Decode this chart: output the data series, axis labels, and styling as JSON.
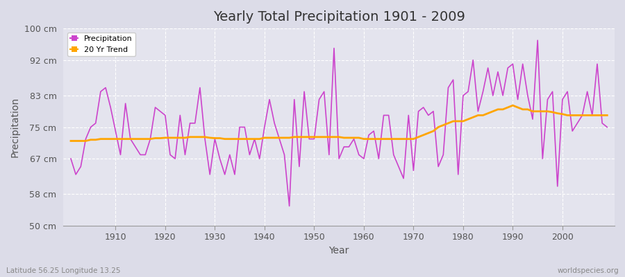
{
  "title": "Yearly Total Precipitation 1901 - 2009",
  "xlabel": "Year",
  "ylabel": "Precipitation",
  "bottom_left_label": "Latitude 56.25 Longitude 13.25",
  "bottom_right_label": "worldspecies.org",
  "precipitation_color": "#CC44CC",
  "trend_color": "#FFA500",
  "fig_bg_color": "#DCDCE8",
  "plot_bg_color": "#E4E4EE",
  "ylim": [
    50,
    100
  ],
  "yticks": [
    50,
    58,
    67,
    75,
    83,
    92,
    100
  ],
  "ytick_labels": [
    "50 cm",
    "58 cm",
    "67 cm",
    "75 cm",
    "83 cm",
    "92 cm",
    "100 cm"
  ],
  "years": [
    1901,
    1902,
    1903,
    1904,
    1905,
    1906,
    1907,
    1908,
    1909,
    1910,
    1911,
    1912,
    1913,
    1914,
    1915,
    1916,
    1917,
    1918,
    1919,
    1920,
    1921,
    1922,
    1923,
    1924,
    1925,
    1926,
    1927,
    1928,
    1929,
    1930,
    1931,
    1932,
    1933,
    1934,
    1935,
    1936,
    1937,
    1938,
    1939,
    1940,
    1941,
    1942,
    1943,
    1944,
    1945,
    1946,
    1947,
    1948,
    1949,
    1950,
    1951,
    1952,
    1953,
    1954,
    1955,
    1956,
    1957,
    1958,
    1959,
    1960,
    1961,
    1962,
    1963,
    1964,
    1965,
    1966,
    1967,
    1968,
    1969,
    1970,
    1971,
    1972,
    1973,
    1974,
    1975,
    1976,
    1977,
    1978,
    1979,
    1980,
    1981,
    1982,
    1983,
    1984,
    1985,
    1986,
    1987,
    1988,
    1989,
    1990,
    1991,
    1992,
    1993,
    1994,
    1995,
    1996,
    1997,
    1998,
    1999,
    2000,
    2001,
    2002,
    2003,
    2004,
    2005,
    2006,
    2007,
    2008,
    2009
  ],
  "precipitation": [
    67,
    63,
    65,
    72,
    75,
    76,
    84,
    85,
    80,
    74,
    68,
    81,
    72,
    70,
    68,
    68,
    72,
    80,
    79,
    78,
    68,
    67,
    78,
    68,
    76,
    76,
    85,
    72,
    63,
    72,
    67,
    63,
    68,
    63,
    75,
    75,
    68,
    72,
    67,
    75,
    82,
    76,
    72,
    68,
    55,
    82,
    65,
    84,
    72,
    72,
    82,
    84,
    68,
    95,
    67,
    70,
    70,
    72,
    68,
    67,
    73,
    74,
    67,
    78,
    78,
    68,
    65,
    62,
    78,
    64,
    79,
    80,
    78,
    79,
    65,
    68,
    85,
    87,
    63,
    83,
    84,
    92,
    79,
    84,
    90,
    83,
    89,
    83,
    90,
    91,
    82,
    91,
    83,
    77,
    97,
    67,
    82,
    84,
    60,
    82,
    84,
    74,
    76,
    78,
    84,
    78,
    91,
    76,
    75
  ],
  "trend": [
    71.5,
    71.5,
    71.5,
    71.5,
    71.8,
    71.8,
    72.0,
    72.0,
    72.0,
    72.0,
    72.0,
    72.0,
    72.0,
    72.0,
    72.0,
    72.0,
    72.0,
    72.2,
    72.2,
    72.3,
    72.3,
    72.3,
    72.3,
    72.3,
    72.5,
    72.5,
    72.5,
    72.5,
    72.3,
    72.2,
    72.2,
    72.0,
    72.0,
    72.0,
    72.0,
    72.0,
    72.0,
    72.0,
    72.0,
    72.3,
    72.3,
    72.3,
    72.3,
    72.3,
    72.3,
    72.5,
    72.5,
    72.5,
    72.5,
    72.5,
    72.5,
    72.5,
    72.5,
    72.5,
    72.5,
    72.3,
    72.3,
    72.3,
    72.3,
    72.0,
    72.0,
    72.0,
    72.0,
    72.0,
    72.0,
    72.0,
    72.0,
    72.0,
    72.0,
    72.0,
    72.5,
    73.0,
    73.5,
    74.0,
    75.0,
    75.5,
    76.0,
    76.5,
    76.5,
    76.5,
    77.0,
    77.5,
    78.0,
    78.0,
    78.5,
    79.0,
    79.5,
    79.5,
    80.0,
    80.5,
    80.0,
    79.5,
    79.5,
    79.0,
    79.0,
    79.0,
    79.0,
    78.8,
    78.5,
    78.3,
    78.0,
    78.0,
    78.0,
    78.0,
    78.0,
    78.0,
    78.0,
    78.0,
    78.0
  ]
}
